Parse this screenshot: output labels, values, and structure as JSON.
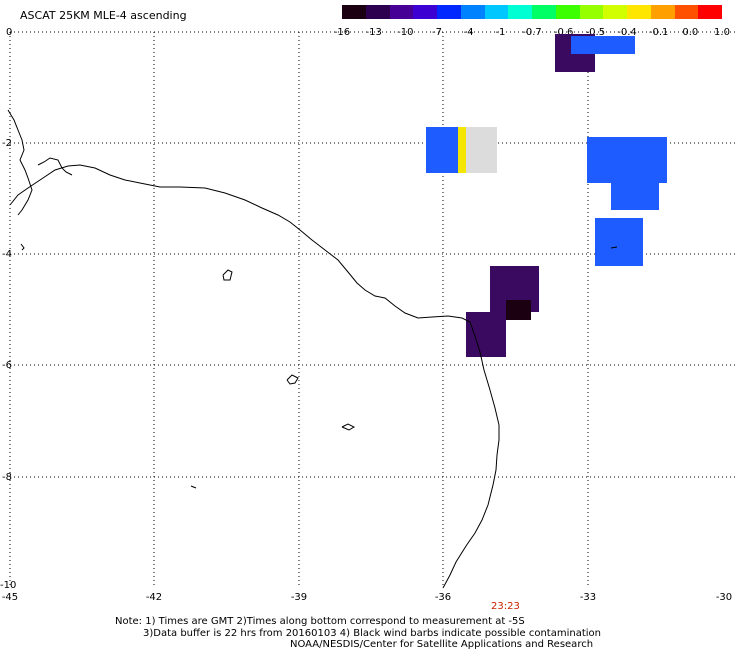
{
  "title": "ASCAT 25KM MLE-4 ascending",
  "colorbar": {
    "colors": [
      "#1a0010",
      "#2d0050",
      "#460096",
      "#3c00d2",
      "#0028ff",
      "#0082ff",
      "#00c8ff",
      "#00ffd2",
      "#00ff64",
      "#3cff00",
      "#96ff00",
      "#d2ff00",
      "#ffe600",
      "#ffa000",
      "#ff5000",
      "#ff0000"
    ],
    "tick_labels": [
      "-16",
      "-13",
      "-10",
      "-7",
      "-4",
      "-1",
      "-0.7",
      "-0.6",
      "-0.5",
      "-0.4",
      "-0.1",
      "0.0",
      "1.0"
    ]
  },
  "map": {
    "x_ticks": [
      "-45",
      "-42",
      "-39",
      "-36",
      "-33",
      "-30"
    ],
    "y_ticks": [
      "0",
      "-2",
      "-4",
      "-6",
      "-8",
      "-10"
    ],
    "time_label": "23:23"
  },
  "notes": {
    "line1": "Note: 1) Times are GMT 2)Times along bottom correspond to measurement at -5S",
    "line2": "3)Data buffer is 22 hrs from 20160103 4) Black wind barbs indicate possible contamination",
    "line3": "NOAA/NESDIS/Center for Satellite Applications and Research"
  }
}
